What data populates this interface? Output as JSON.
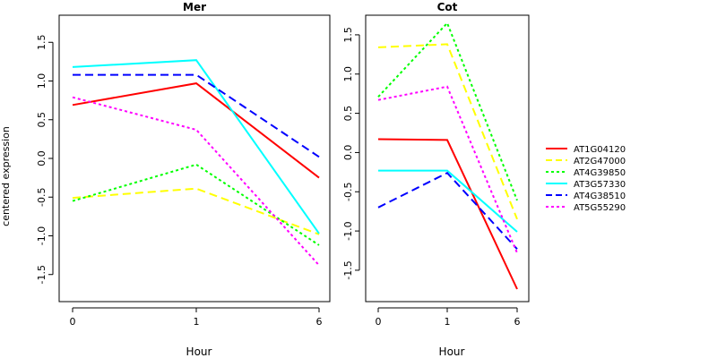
{
  "chart_data": {
    "type": "line",
    "ylabel": "centered expression",
    "panels": [
      {
        "title": "Mer",
        "xlabel": "Hour",
        "categories": [
          "0",
          "1",
          "6"
        ],
        "ylim": [
          -1.85,
          1.85
        ],
        "yticks": [
          "-1.5",
          "-1.0",
          "-0.5",
          "0.0",
          "0.5",
          "1.0",
          "1.5"
        ],
        "series": [
          {
            "name": "AT1G04120",
            "values": [
              0.69,
              0.97,
              -0.25
            ]
          },
          {
            "name": "AT2G47000",
            "values": [
              -0.51,
              -0.39,
              -0.98
            ]
          },
          {
            "name": "AT4G39850",
            "values": [
              -0.55,
              -0.08,
              -1.12
            ]
          },
          {
            "name": "AT3G57330",
            "values": [
              1.18,
              1.27,
              -0.97
            ]
          },
          {
            "name": "AT4G38510",
            "values": [
              1.08,
              1.08,
              0.02
            ]
          },
          {
            "name": "AT5G55290",
            "values": [
              0.79,
              0.37,
              -1.38
            ]
          }
        ]
      },
      {
        "title": "Cot",
        "xlabel": "Hour",
        "categories": [
          "0",
          "1",
          "6"
        ],
        "ylim": [
          -1.9,
          1.75
        ],
        "yticks": [
          "-1.5",
          "-1.0",
          "-0.5",
          "0.0",
          "0.5",
          "1.0",
          "1.5"
        ],
        "series": [
          {
            "name": "AT1G04120",
            "values": [
              0.17,
              0.16,
              -1.74
            ]
          },
          {
            "name": "AT2G47000",
            "values": [
              1.34,
              1.38,
              -0.85
            ]
          },
          {
            "name": "AT4G39850",
            "values": [
              0.71,
              1.65,
              -0.61
            ]
          },
          {
            "name": "AT3G57330",
            "values": [
              -0.23,
              -0.23,
              -1.01
            ]
          },
          {
            "name": "AT4G38510",
            "values": [
              -0.7,
              -0.26,
              -1.23
            ]
          },
          {
            "name": "AT5G55290",
            "values": [
              0.67,
              0.84,
              -1.28
            ]
          }
        ]
      }
    ],
    "legend": {
      "placement": "right",
      "entries": [
        {
          "name": "AT1G04120",
          "color": "#ff0000",
          "dash": "solid"
        },
        {
          "name": "AT2G47000",
          "color": "#ffff00",
          "dash": "dashed"
        },
        {
          "name": "AT4G39850",
          "color": "#00ff00",
          "dash": "dotted"
        },
        {
          "name": "AT3G57330",
          "color": "#00ffff",
          "dash": "solid"
        },
        {
          "name": "AT4G38510",
          "color": "#0000ff",
          "dash": "dashed"
        },
        {
          "name": "AT5G55290",
          "color": "#ff00ff",
          "dash": "dotted"
        }
      ]
    }
  }
}
